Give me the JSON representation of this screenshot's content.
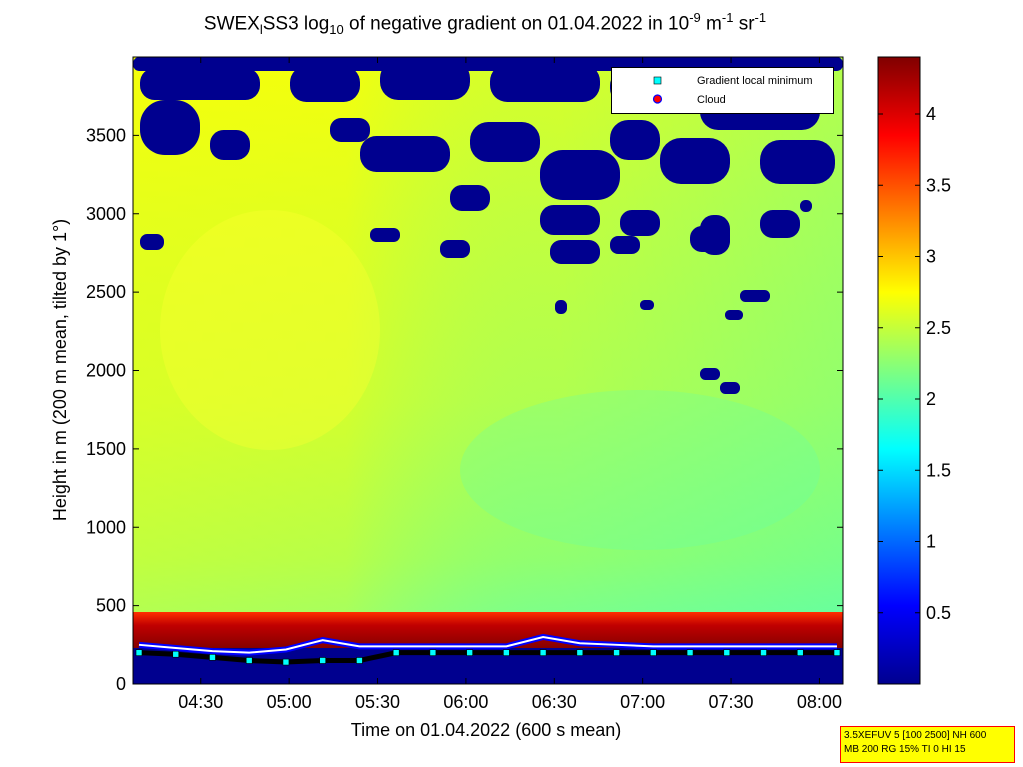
{
  "title": {
    "prefix": "SWEX",
    "sub1": "l",
    "mid": "SS3 log",
    "sub2": "10",
    "rest": " of negative gradient on 01.04.2022 in 10",
    "sup1": "-9",
    "unit1": " m",
    "sup2": "-1",
    "unit2": " sr",
    "sup3": "-1"
  },
  "legend": {
    "item1": "Gradient local minimum",
    "item2": "Cloud"
  },
  "info": {
    "line1": "3.5XEFUV 5 [100 2500] NH 600",
    "line2": "MB 200 RG 15% TI 0 HI 15"
  },
  "colors": {
    "gradient_min_marker": "#00ffff",
    "cloud_marker": "#ff0000",
    "cloud_marker_edge": "#0000ff",
    "colormap": "jet"
  },
  "chart_data": {
    "type": "heatmap",
    "title": "SWEX_l SS3 log10 of negative gradient on 01.04.2022 in 10^-9 m^-1 sr^-1",
    "xlabel": "Time on 01.04.2022 (600 s mean)",
    "ylabel": "Height in m (200 m mean, tilted by 1°)",
    "x_ticks": [
      "04:30",
      "05:00",
      "05:30",
      "06:00",
      "06:30",
      "07:00",
      "07:30",
      "08:00"
    ],
    "y_ticks": [
      0,
      500,
      1000,
      1500,
      2000,
      2500,
      3000,
      3500
    ],
    "xlim": [
      "04:07",
      "08:08"
    ],
    "ylim": [
      0,
      4000
    ],
    "colorbar": {
      "ticks": [
        0.5,
        1,
        1.5,
        2,
        2.5,
        3,
        3.5,
        4
      ],
      "range": [
        0,
        4.4
      ],
      "colormap": "jet"
    },
    "legend_position": "top-right",
    "boundary_layer_top_m": 400,
    "gradient_min_height_m": [
      200,
      190,
      170,
      150,
      140,
      150,
      150,
      200,
      200,
      200,
      200,
      200,
      200,
      200,
      200,
      200,
      200,
      200,
      200,
      200
    ],
    "cloud_height_m": [
      250,
      230,
      210,
      200,
      220,
      280,
      240,
      240,
      240,
      240,
      240,
      300,
      260,
      250,
      240,
      240,
      240,
      240,
      240,
      240
    ]
  }
}
